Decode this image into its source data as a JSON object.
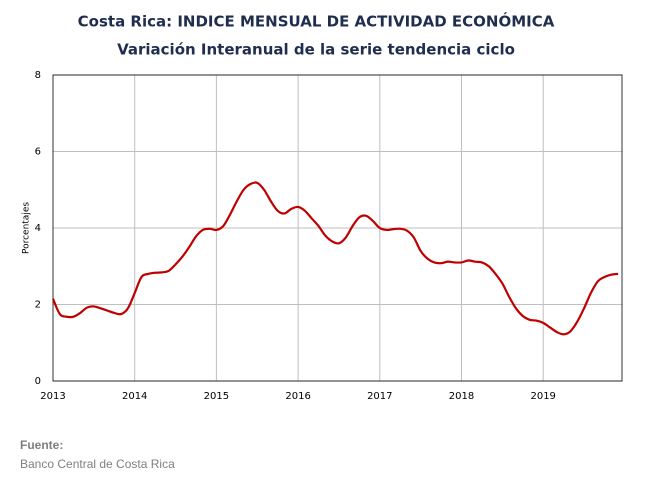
{
  "chart_data": {
    "type": "line",
    "title": "Costa Rica: INDICE MENSUAL DE ACTIVIDAD ECONÓMICA",
    "subtitle": "Variación Interanual de la serie tendencia ciclo",
    "y_label": "Porcentajes",
    "source_title": "Fuente:",
    "source": "Banco Central de Costa Rica",
    "categories": [
      "2013",
      null,
      null,
      null,
      null,
      null,
      null,
      null,
      null,
      null,
      null,
      null,
      "2014",
      null,
      null,
      null,
      null,
      null,
      null,
      null,
      null,
      null,
      null,
      null,
      "2015",
      null,
      null,
      null,
      null,
      null,
      null,
      null,
      null,
      null,
      null,
      null,
      "2016",
      null,
      null,
      null,
      null,
      null,
      null,
      null,
      null,
      null,
      null,
      null,
      "2017",
      null,
      null,
      null,
      null,
      null,
      null,
      null,
      null,
      null,
      null,
      null,
      "2018",
      null,
      null,
      null,
      null,
      null,
      null,
      null,
      null,
      null,
      null,
      null,
      "2019",
      null,
      null,
      null,
      null,
      null,
      null,
      null,
      null,
      null,
      null,
      null
    ],
    "series": [
      {
        "name": "Variación interanual",
        "color": "#c00000",
        "values": [
          2.15,
          1.75,
          1.68,
          1.68,
          1.78,
          1.92,
          1.95,
          1.9,
          1.84,
          1.78,
          1.75,
          1.9,
          2.3,
          2.72,
          2.8,
          2.83,
          2.84,
          2.88,
          3.05,
          3.25,
          3.5,
          3.78,
          3.95,
          3.98,
          3.95,
          4.05,
          4.35,
          4.7,
          5.0,
          5.15,
          5.18,
          5.0,
          4.7,
          4.45,
          4.38,
          4.5,
          4.55,
          4.45,
          4.25,
          4.05,
          3.8,
          3.65,
          3.6,
          3.75,
          4.05,
          4.28,
          4.32,
          4.18,
          4.0,
          3.95,
          3.97,
          3.98,
          3.93,
          3.75,
          3.4,
          3.2,
          3.1,
          3.08,
          3.12,
          3.1,
          3.1,
          3.15,
          3.12,
          3.1,
          3.0,
          2.8,
          2.55,
          2.2,
          1.9,
          1.7,
          1.6,
          1.58,
          1.52,
          1.4,
          1.28,
          1.22,
          1.3,
          1.55,
          1.9,
          2.3,
          2.6,
          2.72,
          2.78,
          2.8
        ]
      }
    ],
    "ylim": [
      0,
      8
    ],
    "yticks": [
      0,
      2,
      4,
      6,
      8
    ],
    "grid": true
  }
}
